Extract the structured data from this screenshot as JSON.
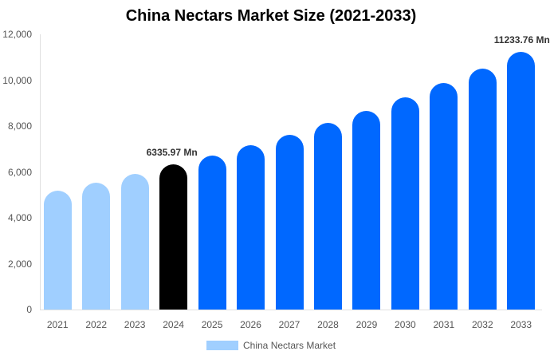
{
  "chart_data": {
    "type": "bar",
    "title": "China Nectars Market Size (2021-2033)",
    "xlabel": "",
    "ylabel": "",
    "ylim": [
      0,
      12000
    ],
    "yticks": [
      "0",
      "2,000",
      "4,000",
      "6,000",
      "8,000",
      "10,000",
      "12,000"
    ],
    "grid": false,
    "legend_position": "bottom",
    "categories": [
      "2021",
      "2022",
      "2023",
      "2024",
      "2025",
      "2026",
      "2027",
      "2028",
      "2029",
      "2030",
      "2031",
      "2032",
      "2033"
    ],
    "series": [
      {
        "name": "China Nectars Market",
        "values": [
          5183,
          5530,
          5913,
          6335.97,
          6713,
          7165,
          7617,
          8139,
          8661,
          9252,
          9878,
          10504,
          11233.76
        ]
      }
    ],
    "annotations": [
      {
        "category": "2024",
        "text": "6335.97 Mn"
      },
      {
        "category": "2033",
        "text": "11233.76 Mn"
      }
    ],
    "colors": {
      "historical": "#a0cfff",
      "base_year": "#000000",
      "forecast": "#0068ff"
    }
  },
  "legend": {
    "label": "China Nectars Market"
  }
}
